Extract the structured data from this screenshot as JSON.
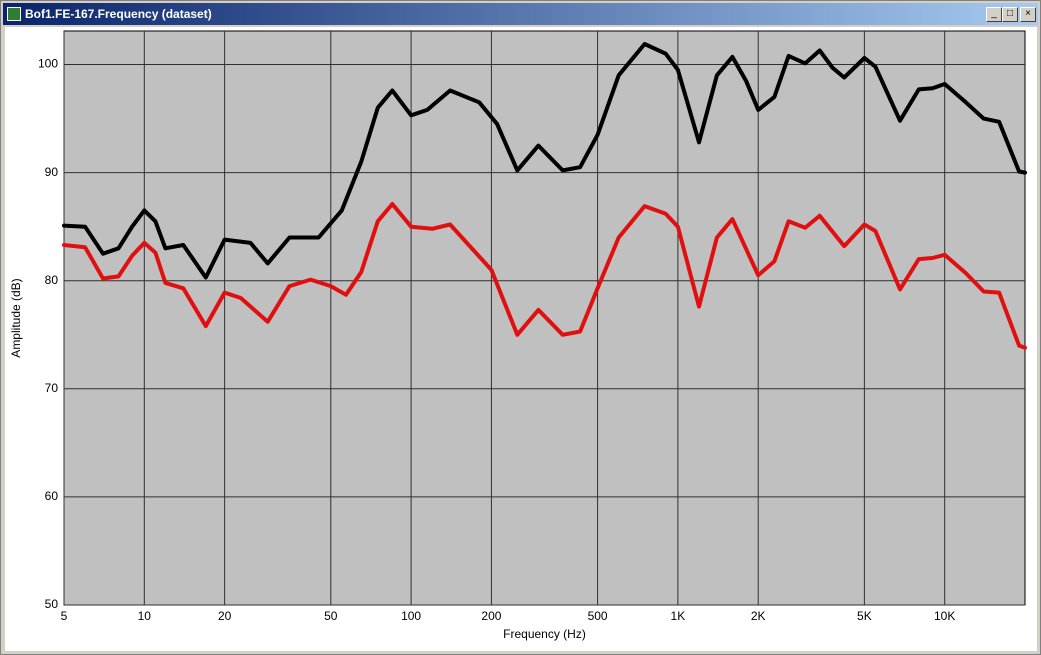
{
  "window": {
    "title": "Bof1.FE-167.Frequency (dataset)"
  },
  "chart_data": {
    "type": "line",
    "xlabel": "Frequency (Hz)",
    "ylabel": "Amplitude (dB)",
    "xscale": "log",
    "grid": true,
    "background": "#c0c0c0",
    "xlim": [
      5,
      20000
    ],
    "ylim": [
      50,
      103.1
    ],
    "xticks": [
      5,
      10,
      20,
      50,
      100,
      200,
      500,
      {
        "value": 1000,
        "label": "1K"
      },
      {
        "value": 2000,
        "label": "2K"
      },
      {
        "value": 5000,
        "label": "5K"
      },
      {
        "value": 10000,
        "label": "10K"
      }
    ],
    "yticks": [
      50,
      60,
      70,
      80,
      90,
      100
    ],
    "series": [
      {
        "color": "#000000",
        "x": [
          5,
          6,
          7,
          8,
          9,
          10,
          11,
          12,
          14,
          17,
          20,
          25,
          29,
          35,
          45,
          55,
          65,
          75,
          85,
          100,
          115,
          140,
          180,
          210,
          250,
          300,
          370,
          430,
          500,
          600,
          750,
          900,
          1000,
          1200,
          1400,
          1600,
          1800,
          2000,
          2300,
          2600,
          3000,
          3400,
          3800,
          4200,
          5000,
          5500,
          6800,
          8000,
          9000,
          10000,
          12000,
          14000,
          16000,
          19000,
          20000
        ],
        "values": [
          85.1,
          85,
          82.5,
          83,
          85,
          86.5,
          85.5,
          83,
          83.3,
          80.3,
          83.8,
          83.5,
          81.6,
          84,
          84,
          86.5,
          91,
          96,
          97.6,
          95.3,
          95.8,
          97.6,
          96.5,
          94.5,
          90.2,
          92.5,
          90.2,
          90.5,
          93.5,
          99,
          101.9,
          101,
          99.5,
          92.8,
          99,
          100.7,
          98.5,
          95.8,
          97,
          100.8,
          100.1,
          101.3,
          99.7,
          98.8,
          100.6,
          99.8,
          94.8,
          97.7,
          97.8,
          98.2,
          96.5,
          95,
          94.7,
          90.1,
          90
        ]
      },
      {
        "color": "#e01010",
        "x": [
          5,
          6,
          7,
          8,
          9,
          10,
          11,
          12,
          14,
          17,
          20,
          23,
          29,
          35,
          42,
          50,
          57,
          65,
          75,
          85,
          100,
          120,
          140,
          200,
          250,
          300,
          370,
          430,
          500,
          600,
          750,
          900,
          1000,
          1200,
          1400,
          1600,
          2000,
          2300,
          2600,
          3000,
          3400,
          4200,
          5000,
          5500,
          6800,
          8000,
          9000,
          10000,
          12000,
          14000,
          16000,
          19000,
          20000
        ],
        "values": [
          83.3,
          83.1,
          80.2,
          80.4,
          82.3,
          83.5,
          82.6,
          79.8,
          79.3,
          75.8,
          78.9,
          78.4,
          76.2,
          79.5,
          80.1,
          79.5,
          78.7,
          80.8,
          85.5,
          87.1,
          85,
          84.8,
          85.2,
          81,
          75,
          77.3,
          75,
          75.3,
          79.3,
          84,
          86.9,
          86.2,
          85,
          77.6,
          84,
          85.7,
          80.5,
          81.8,
          85.5,
          84.9,
          86,
          83.2,
          85.2,
          84.6,
          79.2,
          82,
          82.1,
          82.4,
          80.7,
          79,
          78.9,
          74,
          73.8
        ]
      }
    ]
  }
}
